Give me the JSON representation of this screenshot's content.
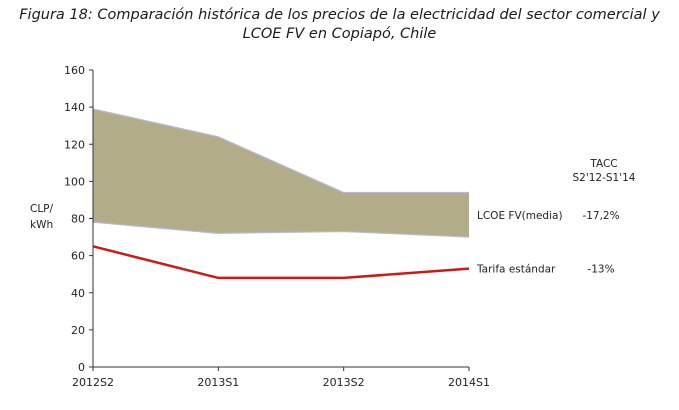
{
  "chart_data": {
    "type": "area",
    "title_line1": "Figura 18: Comparación histórica de los precios de la electricidad del sector comercial y",
    "title_line2": "LCOE FV en Copiapó, Chile",
    "ylabel_line1": "CLP/",
    "ylabel_line2": "kWh",
    "ylim": [
      0,
      160
    ],
    "yticks": [
      0,
      20,
      40,
      60,
      80,
      100,
      120,
      140,
      160
    ],
    "categories": [
      "2012S2",
      "2013S1",
      "2013S2",
      "2014S1"
    ],
    "band": {
      "name": "LCOE FV(media)",
      "upper": [
        139,
        124,
        94,
        94
      ],
      "lower": [
        78,
        72,
        73,
        70
      ],
      "color": "#b3ac88"
    },
    "series": [
      {
        "name": "Tarifa estándar",
        "values": [
          65,
          48,
          48,
          53
        ],
        "color": "#cc1a1a"
      }
    ],
    "tacc_header_line1": "TACC",
    "tacc_header_line2": "S2'12-S1'14",
    "tacc_values": [
      "-17,2%",
      "-13%"
    ],
    "grid": false
  }
}
